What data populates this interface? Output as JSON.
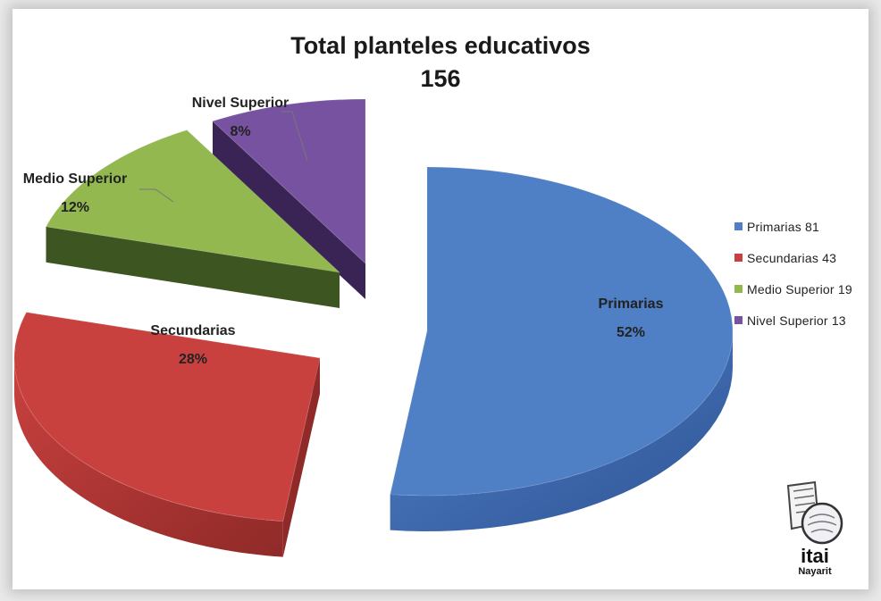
{
  "chart_data": {
    "type": "pie",
    "title": "Total planteles educativos",
    "subtitle": "156",
    "slices": [
      {
        "name": "Primarias",
        "value": 81,
        "percent_label": "52%",
        "color": "#4f7fc4",
        "side_color": "#2f5597",
        "exploded": true
      },
      {
        "name": "Secundarias",
        "value": 43,
        "percent_label": "28%",
        "color": "#c9413f",
        "side_color": "#8f2a28",
        "exploded": true
      },
      {
        "name": "Medio Superior",
        "value": 19,
        "percent_label": "12%",
        "color": "#93b84f",
        "side_color": "#3d5621",
        "exploded": true
      },
      {
        "name": "Nivel Superior",
        "value": 13,
        "percent_label": "8%",
        "color": "#7752a0",
        "side_color": "#3a2455",
        "exploded": true
      }
    ],
    "legend": {
      "placement": "right",
      "entries": [
        "Primarias 81",
        "Secundarias 43",
        "Medio Superior 19",
        "Nivel Superior 13"
      ]
    }
  },
  "logo": {
    "word": "itai",
    "subword": "Nayarit"
  }
}
